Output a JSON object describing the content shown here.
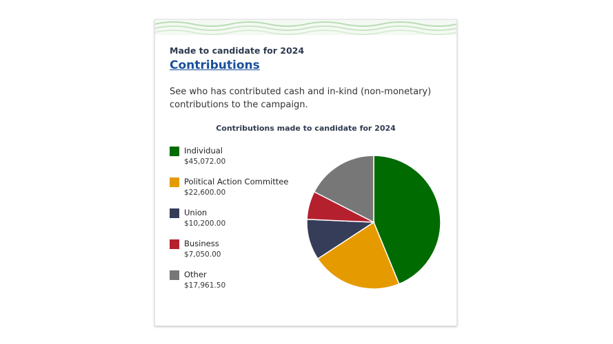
{
  "header": {
    "eyebrow": "Made to candidate for 2024",
    "title": "Contributions",
    "description": "See who has contributed cash and in-kind (non-monetary) contributions to the campaign."
  },
  "chart_data": {
    "type": "pie",
    "title": "Contributions made to candidate for 2024",
    "legend_position": "left",
    "start_angle": "top, clockwise",
    "categories": [
      "Individual",
      "Political Action Committee",
      "Union",
      "Business",
      "Other"
    ],
    "values": [
      45072.0,
      22600.0,
      10200.0,
      7050.0,
      17961.5
    ],
    "value_labels": [
      "$45,072.00",
      "$22,600.00",
      "$10,200.00",
      "$7,050.00",
      "$17,961.50"
    ],
    "colors": [
      "#006b00",
      "#e59b00",
      "#363d59",
      "#b5202e",
      "#777777"
    ]
  }
}
